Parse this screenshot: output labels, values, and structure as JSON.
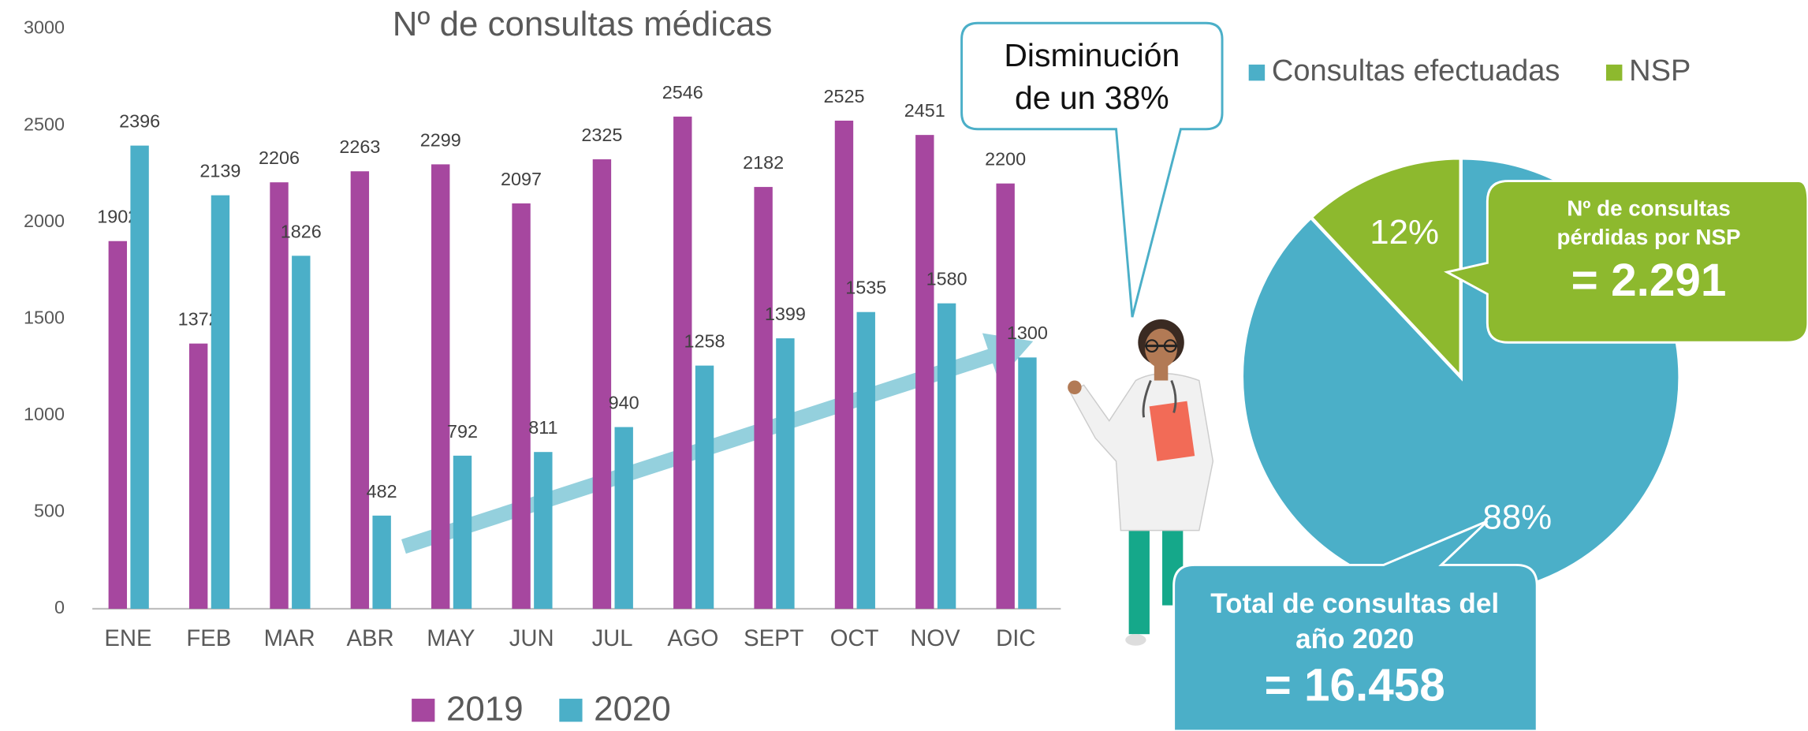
{
  "chart_data": [
    {
      "type": "bar",
      "title": "Nº de consultas médicas",
      "categories": [
        "ENE",
        "FEB",
        "MAR",
        "ABR",
        "MAY",
        "JUN",
        "JUL",
        "AGO",
        "SEPT",
        "OCT",
        "NOV",
        "DIC"
      ],
      "series": [
        {
          "name": "2019",
          "color": "#a6479f",
          "values": [
            1902,
            1372,
            2206,
            2263,
            2299,
            2097,
            2325,
            2546,
            2182,
            2525,
            2451,
            2200
          ]
        },
        {
          "name": "2020",
          "color": "#4bafc8",
          "values": [
            2396,
            2139,
            1826,
            482,
            792,
            811,
            940,
            1258,
            1399,
            1535,
            1580,
            1300
          ]
        }
      ],
      "ylim": [
        0,
        3000
      ],
      "yticks": [
        0,
        500,
        1000,
        1500,
        2000,
        2500,
        3000
      ],
      "grid": false,
      "legend": "bottom",
      "annotation": [
        "Disminución",
        "de un 38%"
      ]
    },
    {
      "type": "pie",
      "series": [
        {
          "name": "Consultas efectuadas",
          "color": "#4bafc8"
        },
        {
          "name": "NSP",
          "color": "#8db92e"
        }
      ],
      "values": [
        88,
        12
      ],
      "value_labels": [
        "88%",
        "12%"
      ],
      "legend": "top",
      "nsp_callout": [
        "Nº  de consultas",
        "pérdidas por NSP",
        "= 2.291"
      ],
      "total_callout": [
        "Total de consultas del",
        "año 2020",
        "= 16.458"
      ]
    }
  ]
}
